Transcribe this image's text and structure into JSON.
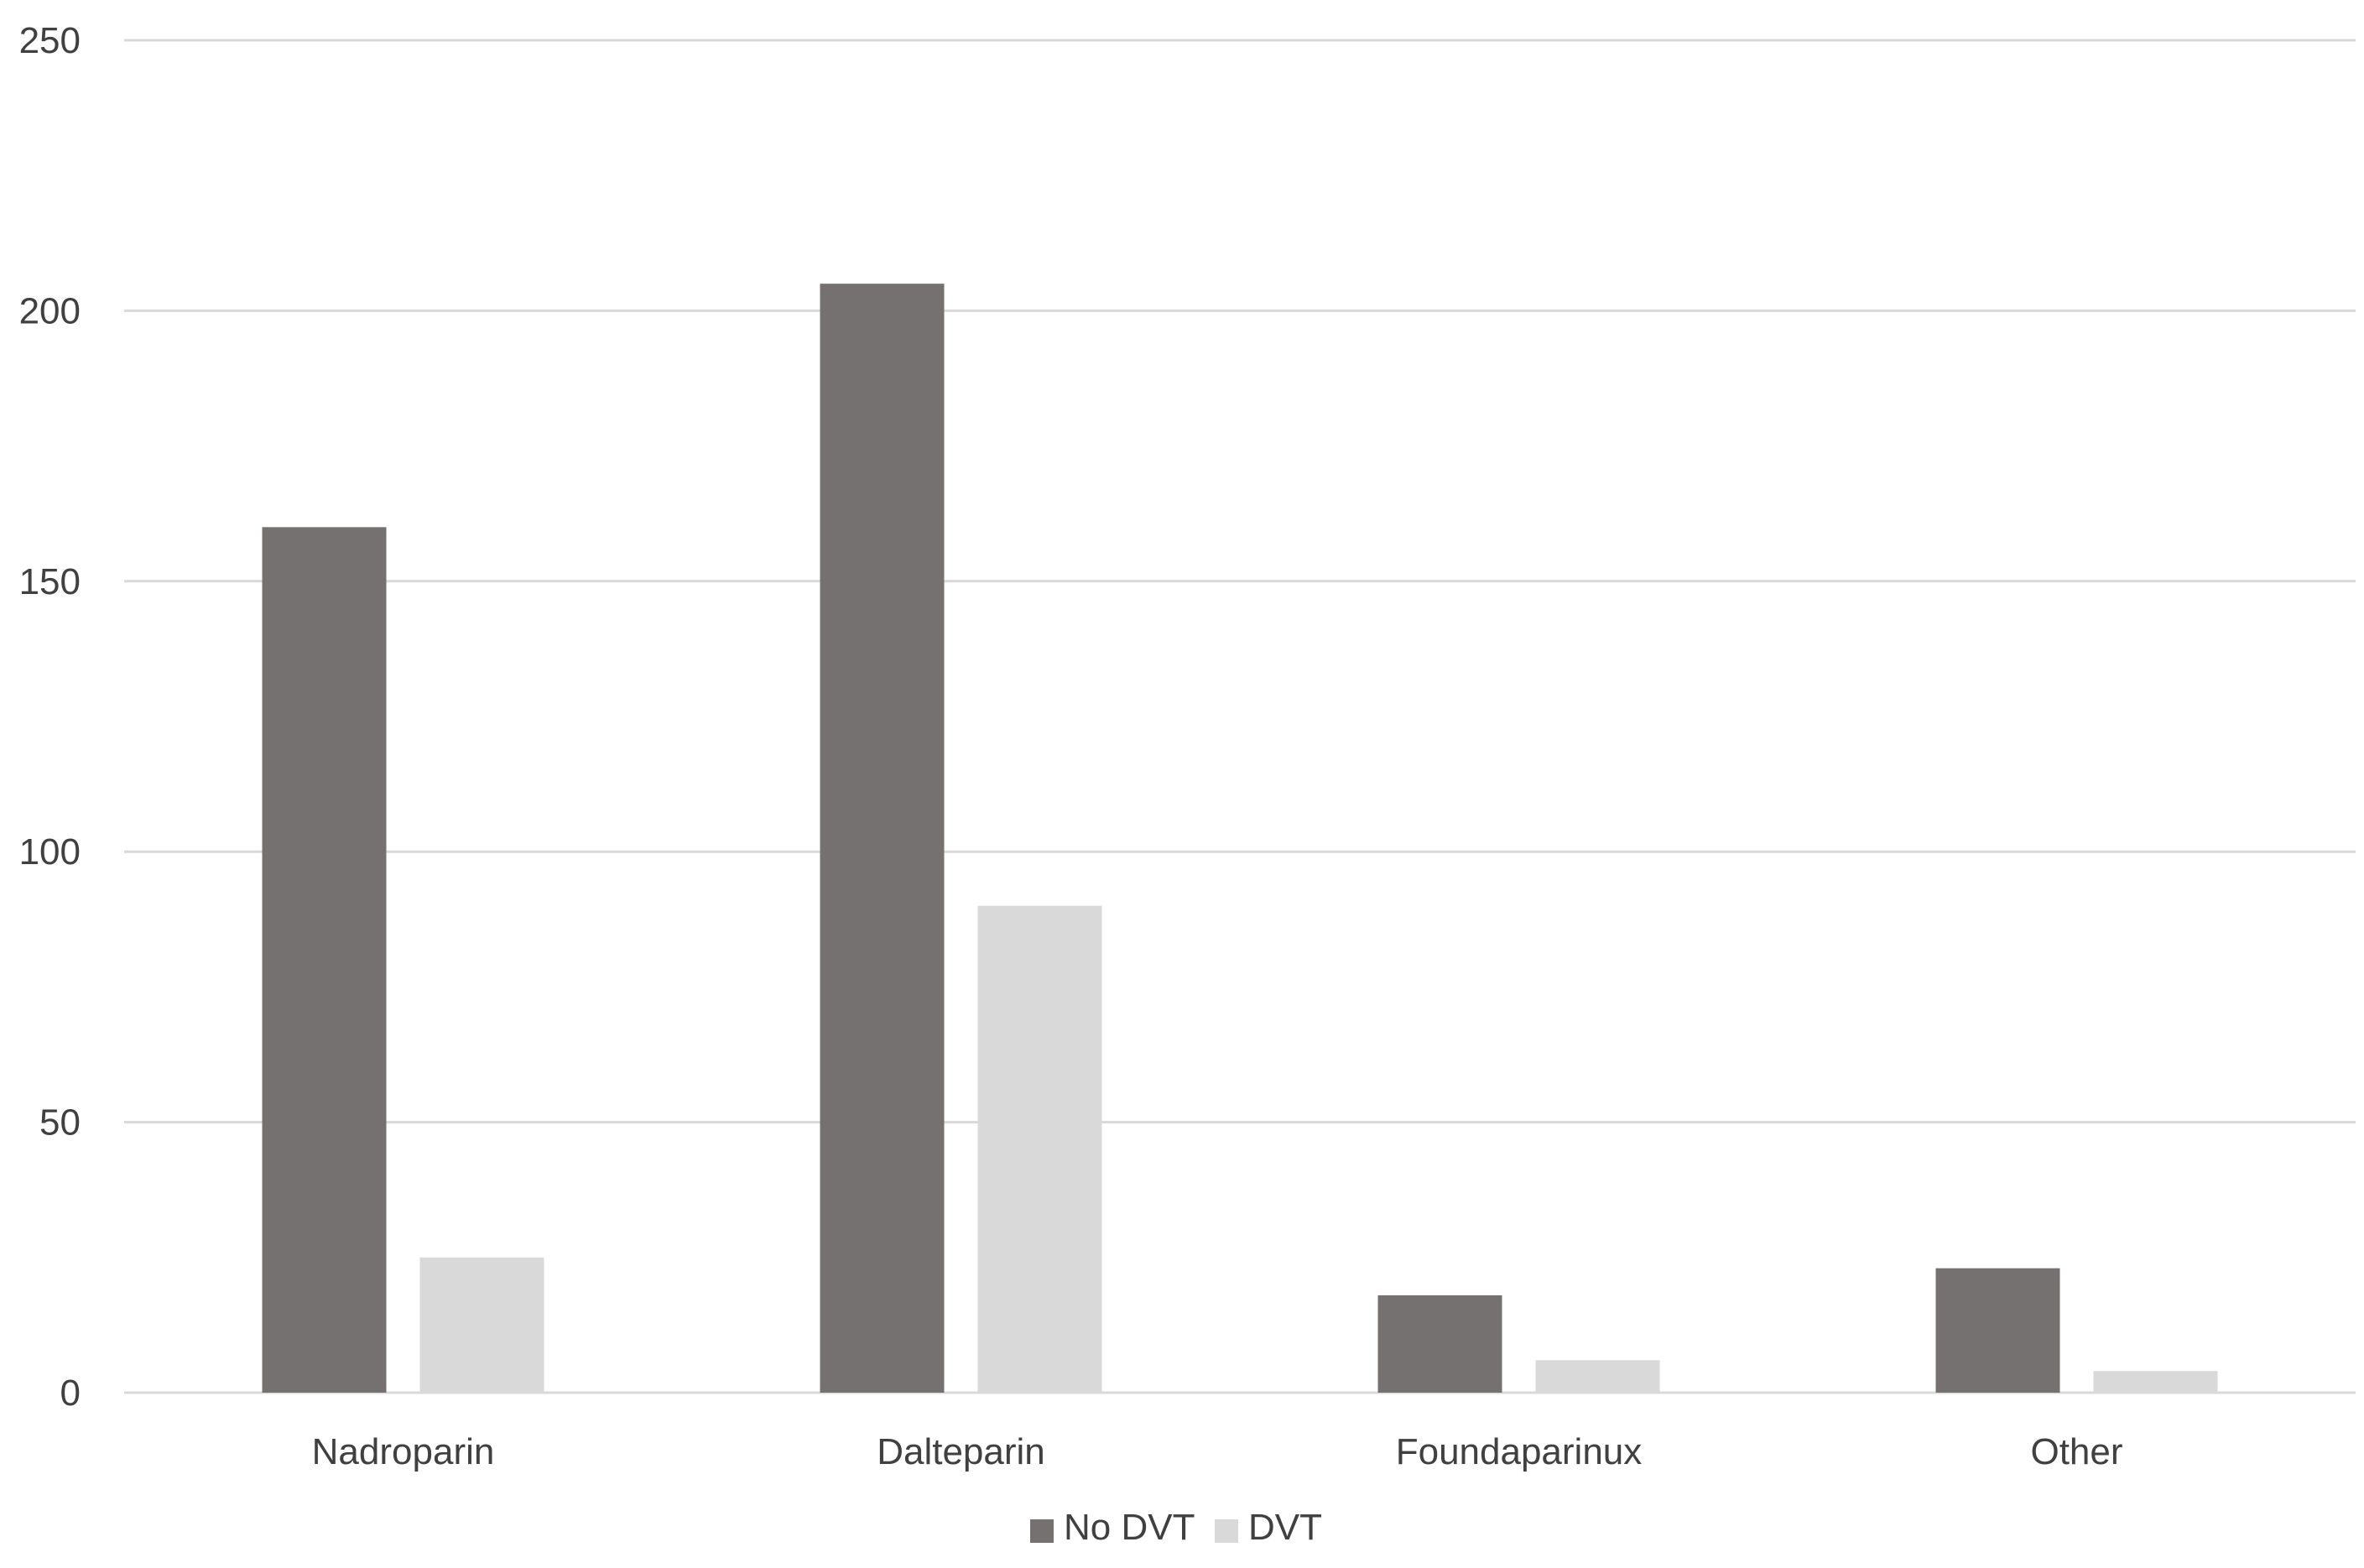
{
  "chart_data": {
    "type": "bar",
    "categories": [
      "Nadroparin",
      "Dalteparin",
      "Foundaparinux",
      "Other"
    ],
    "series": [
      {
        "name": "No DVT",
        "values": [
          160,
          205,
          18,
          23
        ],
        "color": "#767171"
      },
      {
        "name": "DVT",
        "values": [
          25,
          90,
          6,
          4
        ],
        "color": "#d9d9d9"
      }
    ],
    "yticks": [
      "0",
      "50",
      "100",
      "150",
      "200",
      "250"
    ],
    "ylim": [
      0,
      250
    ],
    "title": "",
    "xlabel": "",
    "ylabel": "",
    "grid": true,
    "legend_position": "bottom"
  }
}
